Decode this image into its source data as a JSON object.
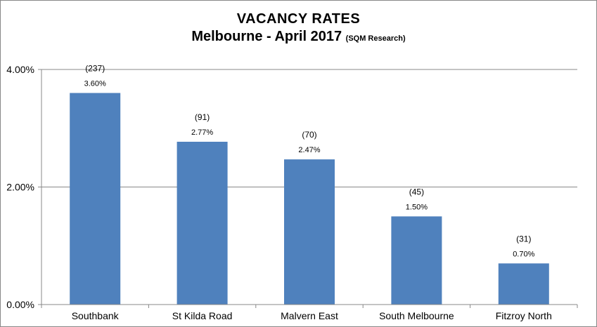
{
  "chart_data": {
    "type": "bar",
    "title": "VACANCY  RATES",
    "subtitle": "Melbourne - April 2017",
    "source": "(SQM Research)",
    "categories": [
      "Southbank",
      "St Kilda Road",
      "Malvern East",
      "South Melbourne",
      "Fitzroy North"
    ],
    "values": [
      3.6,
      2.77,
      2.47,
      1.5,
      0.7
    ],
    "value_labels": [
      "3.60%",
      "2.77%",
      "2.47%",
      "1.50%",
      "0.70%"
    ],
    "count_labels": [
      "(237)",
      "(91)",
      "(70)",
      "(45)",
      "(31)"
    ],
    "ylim": [
      0,
      4
    ],
    "ytick_values": [
      0,
      2,
      4
    ],
    "ytick_labels": [
      "0.00%",
      "2.00%",
      "4.00%"
    ],
    "xlabel": "",
    "ylabel": "",
    "grid": true,
    "legend": "none",
    "bar_color": "#4f81bd",
    "grid_color": "#888888"
  }
}
